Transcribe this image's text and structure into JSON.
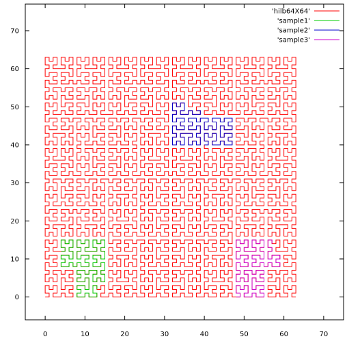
{
  "chart_data": {
    "type": "line",
    "title": "",
    "xlabel": "",
    "ylabel": "",
    "xlim": [
      -5,
      75
    ],
    "ylim": [
      -6,
      77
    ],
    "xticks": [
      0,
      10,
      20,
      30,
      40,
      50,
      60,
      70
    ],
    "yticks": [
      0,
      10,
      20,
      30,
      40,
      50,
      60,
      70
    ],
    "grid": false,
    "legend_position": "top-right",
    "series": [
      {
        "name": "'hilb64X64'",
        "color": "#ff0000",
        "curve": {
          "order": 6,
          "origin": [
            0,
            0
          ],
          "size": 64,
          "start_index": 0,
          "end_index": 4095
        }
      },
      {
        "name": "'sample1'",
        "color": "#00cc00",
        "curve": {
          "order": 6,
          "origin": [
            0,
            0
          ],
          "size": 64,
          "start_index": 96,
          "end_index": 247
        }
      },
      {
        "name": "'sample2'",
        "color": "#0000cc",
        "curve": {
          "order": 6,
          "origin": [
            0,
            0
          ],
          "size": 64,
          "start_index": 2176,
          "end_index": 2327
        }
      },
      {
        "name": "'sample3'",
        "color": "#cc00cc",
        "curve": {
          "order": 6,
          "origin": [
            0,
            0
          ],
          "size": 64,
          "start_index": 3840,
          "end_index": 3991
        }
      }
    ]
  }
}
